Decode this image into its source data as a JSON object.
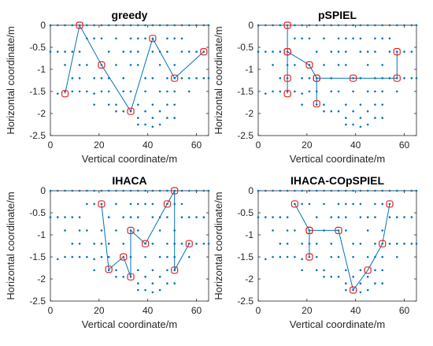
{
  "colors": {
    "grid_points": "#0072BD",
    "path_line": "#0072BD",
    "selected_marker": "#E8201D",
    "axes": "#262626"
  },
  "chart_data": [
    {
      "type": "scatter",
      "title": "greedy",
      "xlabel": "Vertical coordinate/m",
      "ylabel": "Horizontal coordinate/m",
      "xlim": [
        0,
        65
      ],
      "ylim": [
        -2.5,
        0
      ],
      "xticks": [
        0,
        20,
        40,
        60
      ],
      "yticks": [
        0,
        -0.5,
        -1,
        -1.5,
        -2,
        -2.5
      ],
      "path": [
        [
          6,
          -1.55
        ],
        [
          12,
          0
        ],
        [
          21,
          -0.9
        ],
        [
          33,
          -1.95
        ],
        [
          42,
          -0.3
        ],
        [
          51,
          -1.2
        ],
        [
          63,
          -0.6
        ]
      ]
    },
    {
      "type": "scatter",
      "title": "pSPIEL",
      "xlabel": "Vertical coordinate/m",
      "ylabel": "Horizontal coordinate/m",
      "xlim": [
        0,
        65
      ],
      "ylim": [
        -2.5,
        0
      ],
      "xticks": [
        0,
        20,
        40,
        60
      ],
      "yticks": [
        0,
        -0.5,
        -1,
        -1.5,
        -2,
        -2.5
      ],
      "path": [
        [
          12,
          0
        ],
        [
          12,
          -0.6
        ],
        [
          12,
          -1.2
        ],
        [
          12,
          -1.55
        ],
        [
          12,
          -0.6
        ],
        [
          21,
          -0.9
        ],
        [
          24,
          -1.2
        ],
        [
          24,
          -1.78
        ],
        [
          24,
          -1.2
        ],
        [
          39,
          -1.2
        ],
        [
          57,
          -1.2
        ],
        [
          57,
          -0.6
        ]
      ]
    },
    {
      "type": "scatter",
      "title": "IHACA",
      "xlabel": "Vertical coordinate/m",
      "ylabel": "Horizontal coordinate/m",
      "xlim": [
        0,
        65
      ],
      "ylim": [
        -2.5,
        0
      ],
      "xticks": [
        0,
        20,
        40,
        60
      ],
      "yticks": [
        0,
        -0.5,
        -1,
        -1.5,
        -2,
        -2.5
      ],
      "path": [
        [
          21,
          -0.3
        ],
        [
          24,
          -1.78
        ],
        [
          30,
          -1.5
        ],
        [
          33,
          -1.95
        ],
        [
          33,
          -0.9
        ],
        [
          39,
          -1.2
        ],
        [
          48,
          -0.3
        ],
        [
          51,
          0
        ],
        [
          51,
          -1.8
        ],
        [
          57,
          -1.2
        ]
      ]
    },
    {
      "type": "scatter",
      "title": "IHACA-COpSPIEL",
      "xlabel": "Vertical coordinate/m",
      "ylabel": "Horizontal coordinate/m",
      "xlim": [
        0,
        65
      ],
      "ylim": [
        -2.5,
        0
      ],
      "xticks": [
        0,
        20,
        40,
        60
      ],
      "yticks": [
        0,
        -0.5,
        -1,
        -1.5,
        -2,
        -2.5
      ],
      "path": [
        [
          15,
          -0.3
        ],
        [
          21,
          -0.9
        ],
        [
          21,
          -1.5
        ],
        [
          21,
          -0.9
        ],
        [
          33,
          -0.9
        ],
        [
          39,
          -2.25
        ],
        [
          45,
          -1.8
        ],
        [
          51,
          -1.2
        ],
        [
          54,
          -0.3
        ]
      ]
    }
  ]
}
